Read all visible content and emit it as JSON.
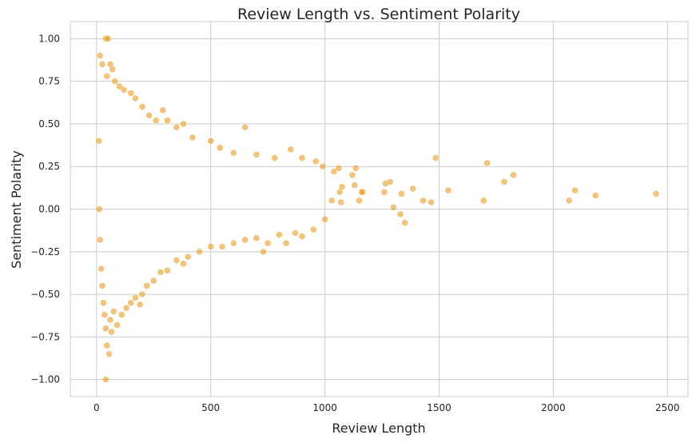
{
  "chart_data": {
    "type": "scatter",
    "title": "Review Length vs. Sentiment Polarity",
    "xlabel": "Review Length",
    "ylabel": "Sentiment Polarity",
    "xlim": [
      -115,
      2590
    ],
    "ylim": [
      -1.1,
      1.1
    ],
    "x_ticks": [
      0,
      500,
      1000,
      1500,
      2000,
      2500
    ],
    "y_ticks": [
      -1.0,
      -0.75,
      -0.5,
      -0.25,
      0.0,
      0.25,
      0.5,
      0.75,
      1.0
    ],
    "x_tick_labels": [
      "0",
      "500",
      "1000",
      "1500",
      "2000",
      "2500"
    ],
    "y_tick_labels": [
      "−1.00",
      "−0.75",
      "−0.50",
      "−0.25",
      "0.00",
      "0.25",
      "0.50",
      "0.75",
      "1.00"
    ],
    "grid": true,
    "marker_color": "#e8940f",
    "marker_opacity": 0.55,
    "series": [
      {
        "points": [
          [
            40,
            1.0
          ],
          [
            50,
            1.0
          ],
          [
            15,
            0.9
          ],
          [
            25,
            0.85
          ],
          [
            60,
            0.85
          ],
          [
            70,
            0.82
          ],
          [
            45,
            0.78
          ],
          [
            80,
            0.75
          ],
          [
            100,
            0.72
          ],
          [
            120,
            0.7
          ],
          [
            150,
            0.68
          ],
          [
            170,
            0.65
          ],
          [
            200,
            0.6
          ],
          [
            230,
            0.55
          ],
          [
            260,
            0.52
          ],
          [
            290,
            0.58
          ],
          [
            310,
            0.52
          ],
          [
            350,
            0.48
          ],
          [
            380,
            0.5
          ],
          [
            420,
            0.42
          ],
          [
            500,
            0.4
          ],
          [
            540,
            0.36
          ],
          [
            650,
            0.48
          ],
          [
            600,
            0.33
          ],
          [
            700,
            0.32
          ],
          [
            780,
            0.3
          ],
          [
            850,
            0.35
          ],
          [
            900,
            0.3
          ],
          [
            960,
            0.28
          ],
          [
            990,
            0.25
          ],
          [
            10,
            0.4
          ],
          [
            12,
            0.0
          ],
          [
            15,
            -0.18
          ],
          [
            20,
            -0.35
          ],
          [
            25,
            -0.45
          ],
          [
            30,
            -0.55
          ],
          [
            35,
            -0.62
          ],
          [
            40,
            -0.7
          ],
          [
            45,
            -0.8
          ],
          [
            55,
            -0.85
          ],
          [
            65,
            -0.72
          ],
          [
            60,
            -0.65
          ],
          [
            75,
            -0.6
          ],
          [
            90,
            -0.68
          ],
          [
            110,
            -0.62
          ],
          [
            130,
            -0.58
          ],
          [
            150,
            -0.55
          ],
          [
            170,
            -0.52
          ],
          [
            190,
            -0.56
          ],
          [
            200,
            -0.5
          ],
          [
            220,
            -0.45
          ],
          [
            250,
            -0.42
          ],
          [
            280,
            -0.37
          ],
          [
            310,
            -0.36
          ],
          [
            350,
            -0.3
          ],
          [
            380,
            -0.32
          ],
          [
            400,
            -0.28
          ],
          [
            450,
            -0.25
          ],
          [
            500,
            -0.22
          ],
          [
            550,
            -0.22
          ],
          [
            600,
            -0.2
          ],
          [
            650,
            -0.18
          ],
          [
            700,
            -0.17
          ],
          [
            730,
            -0.25
          ],
          [
            750,
            -0.2
          ],
          [
            800,
            -0.15
          ],
          [
            830,
            -0.2
          ],
          [
            870,
            -0.14
          ],
          [
            900,
            -0.16
          ],
          [
            950,
            -0.12
          ],
          [
            1000,
            -0.06
          ],
          [
            40,
            -1.0
          ],
          [
            1030,
            0.05
          ],
          [
            1040,
            0.22
          ],
          [
            1060,
            0.24
          ],
          [
            1065,
            0.1
          ],
          [
            1070,
            0.04
          ],
          [
            1075,
            0.13
          ],
          [
            1120,
            0.2
          ],
          [
            1130,
            0.14
          ],
          [
            1135,
            0.24
          ],
          [
            1150,
            0.05
          ],
          [
            1160,
            0.1
          ],
          [
            1165,
            0.1
          ],
          [
            1260,
            0.1
          ],
          [
            1265,
            0.15
          ],
          [
            1285,
            0.16
          ],
          [
            1300,
            0.01
          ],
          [
            1330,
            -0.03
          ],
          [
            1335,
            0.09
          ],
          [
            1350,
            -0.08
          ],
          [
            1385,
            0.12
          ],
          [
            1430,
            0.05
          ],
          [
            1465,
            0.04
          ],
          [
            1485,
            0.3
          ],
          [
            1540,
            0.11
          ],
          [
            1695,
            0.05
          ],
          [
            1710,
            0.27
          ],
          [
            1785,
            0.16
          ],
          [
            1825,
            0.2
          ],
          [
            2070,
            0.05
          ],
          [
            2095,
            0.11
          ],
          [
            2185,
            0.08
          ],
          [
            2450,
            0.09
          ]
        ]
      }
    ]
  }
}
